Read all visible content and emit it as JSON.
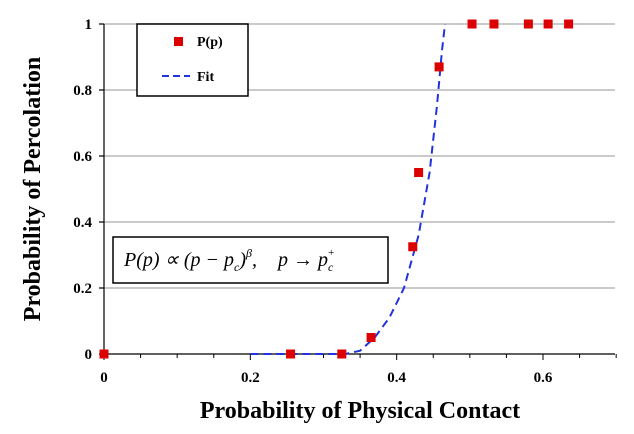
{
  "chart_data": {
    "type": "scatter",
    "xlabel": "Probability of Physical Contact",
    "ylabel": "Probability of Percolation",
    "xlim": [
      0,
      0.7
    ],
    "ylim": [
      0,
      1
    ],
    "x_ticks": [
      "0",
      "0.2",
      "0.4",
      "0.6"
    ],
    "y_ticks": [
      "0",
      "0.2",
      "0.4",
      "0.6",
      "0.8",
      "1"
    ],
    "grid": "horizontal",
    "legend_position": "top-left",
    "series": [
      {
        "name": "P(p)",
        "marker": "square",
        "color": "#dd0000",
        "points": [
          {
            "x": 0.0,
            "y": 0.0
          },
          {
            "x": 0.255,
            "y": 0.0
          },
          {
            "x": 0.325,
            "y": 0.0
          },
          {
            "x": 0.365,
            "y": 0.05
          },
          {
            "x": 0.422,
            "y": 0.325
          },
          {
            "x": 0.43,
            "y": 0.55
          },
          {
            "x": 0.458,
            "y": 0.87
          },
          {
            "x": 0.503,
            "y": 1.0
          },
          {
            "x": 0.533,
            "y": 1.0
          },
          {
            "x": 0.58,
            "y": 1.0
          },
          {
            "x": 0.607,
            "y": 1.0
          },
          {
            "x": 0.635,
            "y": 1.0
          }
        ]
      },
      {
        "name": "Fit",
        "style": "dashed-line",
        "color": "#2233dd",
        "points": [
          {
            "x": 0.2,
            "y": 0.0
          },
          {
            "x": 0.33,
            "y": 0.0
          },
          {
            "x": 0.35,
            "y": 0.01
          },
          {
            "x": 0.37,
            "y": 0.05
          },
          {
            "x": 0.39,
            "y": 0.11
          },
          {
            "x": 0.41,
            "y": 0.2
          },
          {
            "x": 0.43,
            "y": 0.36
          },
          {
            "x": 0.445,
            "y": 0.55
          },
          {
            "x": 0.455,
            "y": 0.75
          },
          {
            "x": 0.462,
            "y": 0.92
          },
          {
            "x": 0.466,
            "y": 1.0
          }
        ]
      }
    ],
    "annotation": {
      "lhs": "P(p) ∝ (p − p",
      "sub_c": "c",
      "close": ")",
      "sup_beta": "β",
      "comma": ",",
      "arrow": "p → p",
      "sub_c2": "c",
      "sup_plus": "+"
    }
  }
}
